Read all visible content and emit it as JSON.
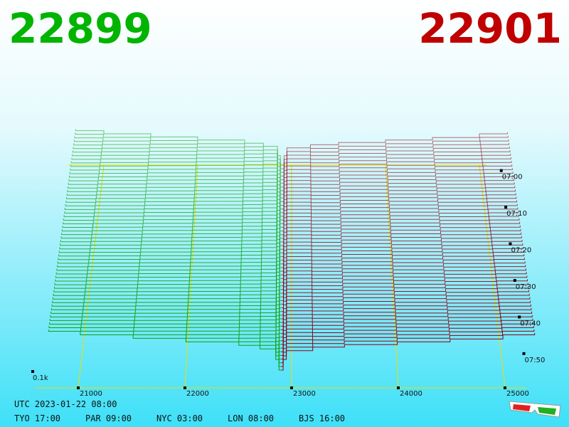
{
  "chart_data": {
    "type": "depth3d",
    "bid_price": "22899",
    "ask_price": "22901",
    "bid_color": "#00b400",
    "ask_color": "#c00000",
    "bid": {
      "color": "#10a010",
      "prices": [
        22899,
        22880,
        22850,
        22700,
        22500,
        22000,
        21500,
        21000,
        20700
      ],
      "depth": [
        0,
        0.3,
        0.6,
        0.7,
        0.8,
        0.9,
        1.0,
        1.1,
        1.15
      ]
    },
    "ask": {
      "color": "#900010",
      "prices": [
        22901,
        22920,
        22950,
        23200,
        23500,
        24000,
        24500,
        25000,
        25300
      ],
      "depth": [
        0,
        0.3,
        0.55,
        0.65,
        0.72,
        0.8,
        0.88,
        1.0,
        1.05
      ]
    },
    "xticks": [
      21000,
      22000,
      23000,
      24000,
      25000
    ],
    "tlim": [
      -1.5,
      54.5
    ],
    "row_step": 1,
    "time_ticks": [
      {
        "value": 0,
        "label": "07:00"
      },
      {
        "value": 10,
        "label": "07:10"
      },
      {
        "value": 20,
        "label": "07:20"
      },
      {
        "value": 30,
        "label": "07:30"
      },
      {
        "value": 40,
        "label": "07:40"
      },
      {
        "value": 50,
        "label": "07:50"
      }
    ],
    "depth_label": "0.1k",
    "utc": "UTC 2023-01-22 08:00",
    "clocks": [
      "TYO 17:00",
      "PAR 09:00",
      "NYC 03:00",
      "LON 08:00",
      "BJS 16:00"
    ]
  }
}
